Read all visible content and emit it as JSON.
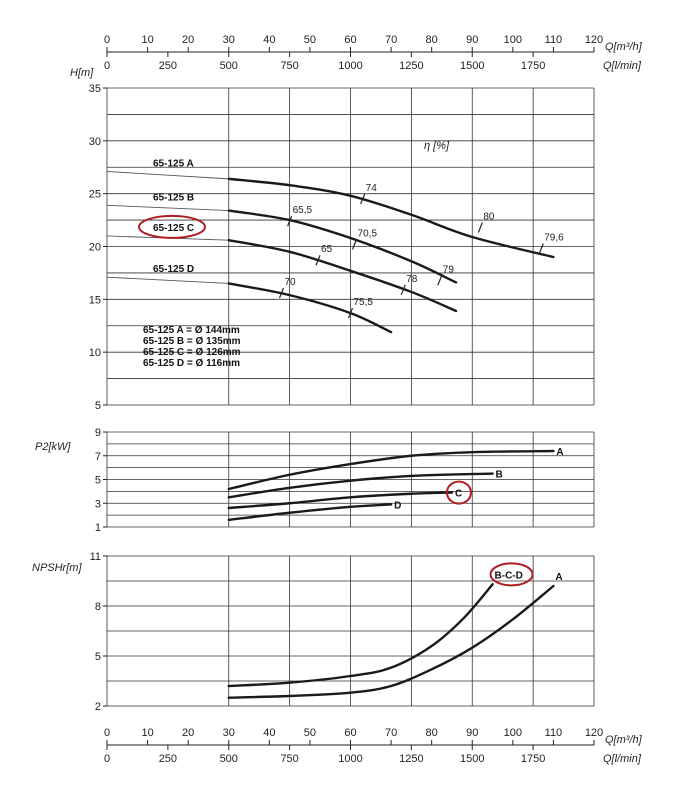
{
  "chart_data": {
    "type": "line",
    "x_axes": {
      "q_m3h": {
        "label": "Q[m³/h]",
        "ticks": [
          "0",
          "10",
          "20",
          "30",
          "40",
          "50",
          "60",
          "70",
          "80",
          "90",
          "100",
          "110",
          "120"
        ]
      },
      "q_lmin": {
        "label": "Q[l/min]",
        "ticks": [
          "0",
          "250",
          "500",
          "750",
          "1000",
          "1250",
          "1500",
          "1750"
        ]
      }
    },
    "head": {
      "ylabel": "H[m]",
      "yticks": [
        "5",
        "10",
        "15",
        "20",
        "25",
        "30",
        "35"
      ],
      "ylim": [
        5,
        35
      ],
      "efficiency_label": "η [%]",
      "curves": [
        {
          "name": "65-125 A",
          "thin": [
            [
              0,
              27.1
            ],
            [
              30,
              26.4
            ]
          ],
          "thick": [
            [
              30,
              26.4
            ],
            [
              45,
              25.8
            ],
            [
              60,
              24.8
            ],
            [
              75,
              23.0
            ],
            [
              90,
              20.9
            ],
            [
              110,
              19.0
            ]
          ]
        },
        {
          "name": "65-125 B",
          "thin": [
            [
              0,
              23.9
            ],
            [
              30,
              23.4
            ]
          ],
          "thick": [
            [
              30,
              23.4
            ],
            [
              45,
              22.5
            ],
            [
              60,
              20.8
            ],
            [
              75,
              18.6
            ],
            [
              86,
              16.6
            ]
          ]
        },
        {
          "name": "65-125 C",
          "thin": [
            [
              0,
              21.0
            ],
            [
              30,
              20.6
            ]
          ],
          "thick": [
            [
              30,
              20.6
            ],
            [
              45,
              19.5
            ],
            [
              60,
              17.7
            ],
            [
              75,
              15.7
            ],
            [
              86,
              13.9
            ]
          ]
        },
        {
          "name": "65-125 D",
          "thin": [
            [
              0,
              17.1
            ],
            [
              30,
              16.5
            ]
          ],
          "thick": [
            [
              30,
              16.5
            ],
            [
              45,
              15.4
            ],
            [
              60,
              13.7
            ],
            [
              70,
              11.9
            ]
          ]
        }
      ],
      "efficiency_marks": [
        {
          "label": "65,5",
          "x": 45,
          "y": 22.4
        },
        {
          "label": "65",
          "x": 52,
          "y": 18.7
        },
        {
          "label": "70",
          "x": 43,
          "y": 15.6
        },
        {
          "label": "74",
          "x": 63,
          "y": 24.5
        },
        {
          "label": "70,5",
          "x": 61,
          "y": 20.2
        },
        {
          "label": "75,5",
          "x": 60,
          "y": 13.7
        },
        {
          "label": "78",
          "x": 73,
          "y": 15.9
        },
        {
          "label": "79",
          "x": 82,
          "y": 16.8
        },
        {
          "label": "80",
          "x": 92,
          "y": 21.8
        },
        {
          "label": "79,6",
          "x": 107,
          "y": 19.8
        }
      ],
      "highlight": "65-125 C",
      "legend": [
        "65-125 A = Ø 144mm",
        "65-125 B = Ø 135mm",
        "65-125 C = Ø 126mm",
        "65-125 D = Ø 116mm"
      ]
    },
    "power": {
      "ylabel": "P2[kW]",
      "yticks": [
        "1",
        "3",
        "5",
        "7",
        "9"
      ],
      "ylim": [
        1,
        9
      ],
      "curves": [
        {
          "name": "A",
          "points": [
            [
              30,
              4.2
            ],
            [
              45,
              5.4
            ],
            [
              60,
              6.3
            ],
            [
              75,
              7.0
            ],
            [
              90,
              7.3
            ],
            [
              110,
              7.4
            ]
          ]
        },
        {
          "name": "B",
          "points": [
            [
              30,
              3.5
            ],
            [
              45,
              4.3
            ],
            [
              60,
              4.9
            ],
            [
              75,
              5.3
            ],
            [
              95,
              5.5
            ]
          ]
        },
        {
          "name": "C",
          "points": [
            [
              30,
              2.6
            ],
            [
              45,
              3.0
            ],
            [
              60,
              3.5
            ],
            [
              75,
              3.8
            ],
            [
              85,
              3.9
            ]
          ]
        },
        {
          "name": "D",
          "points": [
            [
              30,
              1.6
            ],
            [
              45,
              2.2
            ],
            [
              60,
              2.7
            ],
            [
              70,
              2.9
            ]
          ]
        }
      ],
      "highlight": "C"
    },
    "npsh": {
      "ylabel": "NPSHr[m]",
      "yticks": [
        "2",
        "5",
        "8",
        "11"
      ],
      "ylim": [
        2,
        11
      ],
      "curves": [
        {
          "name": "B-C-D",
          "points": [
            [
              30,
              3.2
            ],
            [
              45,
              3.4
            ],
            [
              60,
              3.8
            ],
            [
              70,
              4.3
            ],
            [
              80,
              5.6
            ],
            [
              88,
              7.3
            ],
            [
              95,
              9.3
            ]
          ]
        },
        {
          "name": "A",
          "points": [
            [
              30,
              2.5
            ],
            [
              45,
              2.6
            ],
            [
              60,
              2.8
            ],
            [
              70,
              3.2
            ],
            [
              80,
              4.2
            ],
            [
              90,
              5.5
            ],
            [
              100,
              7.2
            ],
            [
              110,
              9.2
            ]
          ]
        }
      ],
      "highlight": "B-C-D"
    }
  }
}
